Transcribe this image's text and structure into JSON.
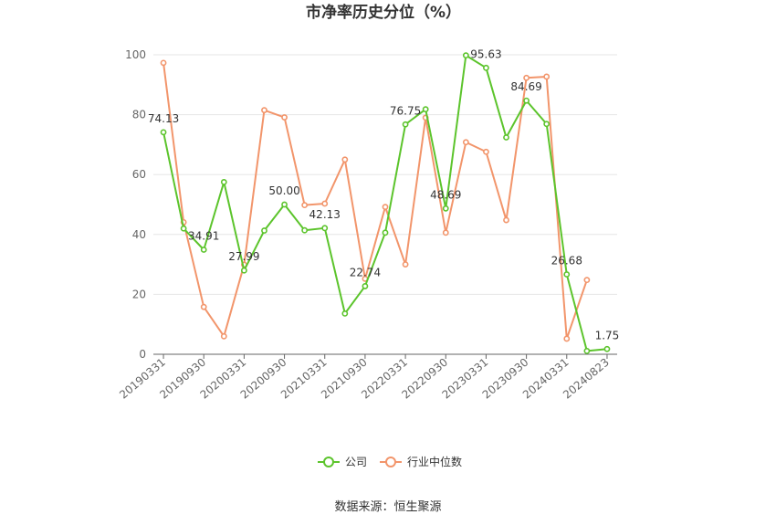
{
  "chart_data": {
    "type": "line",
    "title": "市净率历史分位（%）",
    "source": "数据来源：恒生聚源",
    "ylim": [
      0,
      100
    ],
    "yticks": [
      0,
      20,
      40,
      60,
      80,
      100
    ],
    "grid": true,
    "legend_position": "bottom",
    "x": [
      "20190331",
      "20190630",
      "20190930",
      "20191231",
      "20200331",
      "20200630",
      "20200930",
      "20201231",
      "20210331",
      "20210630",
      "20210930",
      "20211231",
      "20220331",
      "20220630",
      "20220930",
      "20221231",
      "20230331",
      "20230630",
      "20230930",
      "20231231",
      "20240331",
      "20240630",
      "20240823"
    ],
    "x_tick_labels": [
      "20190331",
      "20190930",
      "20200331",
      "20200930",
      "20210331",
      "20210930",
      "20220331",
      "20220930",
      "20230331",
      "20230930",
      "20240331",
      "20240823"
    ],
    "series": [
      {
        "name": "公司",
        "color": "#5cc42c",
        "values": [
          74.13,
          42.0,
          34.91,
          57.5,
          27.99,
          41.3,
          50.0,
          41.4,
          42.13,
          13.6,
          22.74,
          40.6,
          76.75,
          81.8,
          48.69,
          99.8,
          95.63,
          72.4,
          84.69,
          76.9,
          26.68,
          1.1,
          1.75
        ],
        "data_labels": [
          "74.13",
          null,
          "34.91",
          null,
          "27.99",
          null,
          "50.00",
          null,
          "42.13",
          null,
          "22.74",
          null,
          "76.75",
          null,
          "48.69",
          null,
          "95.63",
          null,
          "84.69",
          null,
          "26.68",
          null,
          "1.75"
        ]
      },
      {
        "name": "行业中位数",
        "color": "#f2956b",
        "values": [
          97.3,
          44.1,
          15.8,
          6.0,
          29.9,
          81.5,
          79.1,
          49.8,
          50.3,
          65.0,
          25.2,
          49.2,
          30.0,
          79.0,
          40.6,
          70.8,
          67.6,
          44.8,
          92.3,
          92.7,
          5.2,
          24.8,
          null
        ]
      }
    ]
  }
}
